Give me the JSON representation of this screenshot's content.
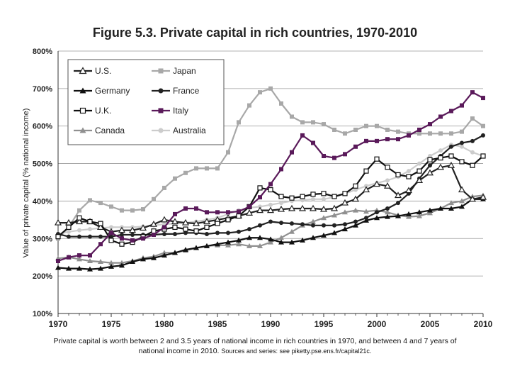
{
  "page": {
    "title": "Figure 5.3. Private capital in rich countries, 1970-2010",
    "caption_main": "Private capital is worth between 2 and 3.5 years of national income in rich countries in 1970, and between 4 and 7 years of national income in 2010.",
    "caption_sources": "Sources and series: see piketty.pse.ens.fr/capital21c."
  },
  "chart_data": {
    "type": "line",
    "title": "Figure 5.3. Private capital in rich countries, 1970-2010",
    "xlabel": "",
    "ylabel": "Value of private capital (% national income)",
    "xlim": [
      1970,
      2010
    ],
    "ylim": [
      100,
      800
    ],
    "x_ticks": [
      1970,
      1975,
      1980,
      1985,
      1990,
      1995,
      2000,
      2005,
      2010
    ],
    "x_tick_labels": [
      "1970",
      "1975",
      "1980",
      "1985",
      "1990",
      "1995",
      "2000",
      "2005",
      "2010"
    ],
    "y_ticks": [
      100,
      200,
      300,
      400,
      500,
      600,
      700,
      800
    ],
    "y_tick_labels": [
      "100%",
      "200%",
      "300%",
      "400%",
      "500%",
      "600%",
      "700%",
      "800%"
    ],
    "grid": "horizontal",
    "legend_position": "top-left",
    "x": [
      1970,
      1971,
      1972,
      1973,
      1974,
      1975,
      1976,
      1977,
      1978,
      1979,
      1980,
      1981,
      1982,
      1983,
      1984,
      1985,
      1986,
      1987,
      1988,
      1989,
      1990,
      1991,
      1992,
      1993,
      1994,
      1995,
      1996,
      1997,
      1998,
      1999,
      2000,
      2001,
      2002,
      2003,
      2004,
      2005,
      2006,
      2007,
      2008,
      2009,
      2010
    ],
    "series": [
      {
        "name": "U.S.",
        "color": "#222222",
        "marker": "triangle-open",
        "values": [
          342,
          342,
          345,
          345,
          330,
          318,
          322,
          322,
          328,
          338,
          350,
          345,
          342,
          340,
          345,
          350,
          355,
          360,
          368,
          375,
          375,
          378,
          380,
          380,
          380,
          378,
          380,
          395,
          405,
          430,
          445,
          440,
          415,
          428,
          455,
          475,
          490,
          495,
          430,
          405,
          410
        ]
      },
      {
        "name": "Japan",
        "color": "#a8a8a8",
        "marker": "square",
        "values": [
          300,
          330,
          375,
          402,
          395,
          385,
          375,
          375,
          378,
          405,
          435,
          460,
          475,
          487,
          487,
          487,
          530,
          610,
          655,
          690,
          700,
          660,
          625,
          610,
          610,
          605,
          590,
          580,
          590,
          600,
          600,
          590,
          585,
          580,
          580,
          580,
          580,
          580,
          585,
          620,
          600
        ]
      },
      {
        "name": "Germany",
        "color": "#111111",
        "marker": "triangle",
        "values": [
          222,
          220,
          220,
          218,
          220,
          225,
          228,
          238,
          245,
          248,
          255,
          262,
          270,
          275,
          280,
          285,
          290,
          295,
          302,
          302,
          298,
          290,
          290,
          295,
          302,
          308,
          315,
          325,
          335,
          348,
          355,
          358,
          360,
          365,
          370,
          375,
          380,
          380,
          385,
          405,
          405
        ]
      },
      {
        "name": "France",
        "color": "#222222",
        "marker": "circle",
        "values": [
          312,
          305,
          305,
          305,
          305,
          305,
          310,
          310,
          310,
          310,
          312,
          312,
          315,
          315,
          312,
          315,
          315,
          318,
          325,
          335,
          345,
          342,
          340,
          338,
          335,
          335,
          335,
          338,
          345,
          355,
          370,
          380,
          395,
          420,
          460,
          495,
          520,
          545,
          555,
          560,
          575
        ]
      },
      {
        "name": "U.K.",
        "color": "#111111",
        "marker": "square-open",
        "values": [
          305,
          330,
          355,
          345,
          340,
          295,
          285,
          290,
          305,
          320,
          325,
          330,
          325,
          320,
          330,
          340,
          350,
          360,
          385,
          435,
          430,
          412,
          408,
          412,
          418,
          420,
          412,
          420,
          440,
          480,
          512,
          490,
          470,
          465,
          480,
          510,
          515,
          520,
          505,
          495,
          520
        ]
      },
      {
        "name": "Italy",
        "color": "#5a1a5a",
        "marker": "square",
        "values": [
          240,
          250,
          255,
          255,
          285,
          315,
          300,
          295,
          300,
          310,
          330,
          365,
          380,
          380,
          370,
          370,
          370,
          372,
          385,
          410,
          445,
          485,
          530,
          575,
          555,
          520,
          515,
          525,
          545,
          560,
          560,
          565,
          565,
          575,
          590,
          605,
          625,
          640,
          655,
          690,
          675
        ]
      },
      {
        "name": "Canada",
        "color": "#909090",
        "marker": "triangle",
        "values": [
          247,
          250,
          245,
          240,
          238,
          235,
          235,
          240,
          248,
          252,
          262,
          262,
          268,
          275,
          280,
          282,
          282,
          285,
          280,
          280,
          290,
          302,
          318,
          335,
          345,
          355,
          362,
          370,
          375,
          372,
          375,
          370,
          362,
          358,
          360,
          368,
          380,
          395,
          400,
          412,
          415
        ]
      },
      {
        "name": "Australia",
        "color": "#cccccc",
        "marker": "circle",
        "values": [
          312,
          318,
          322,
          325,
          328,
          330,
          330,
          330,
          332,
          335,
          338,
          340,
          342,
          345,
          350,
          355,
          365,
          375,
          382,
          385,
          390,
          395,
          400,
          402,
          405,
          405,
          410,
          420,
          430,
          440,
          448,
          455,
          465,
          480,
          500,
          520,
          535,
          550,
          545,
          530,
          520
        ]
      }
    ]
  }
}
